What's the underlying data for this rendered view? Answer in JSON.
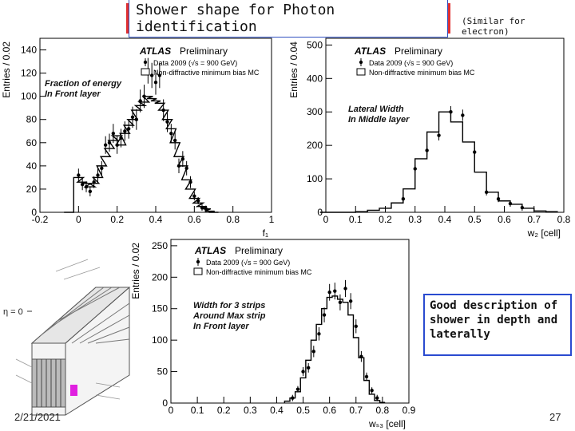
{
  "slide": {
    "title": "Shower shape for Photon identification",
    "note_right": "(Similar for electron)",
    "good_description": "Good description of shower in depth and laterally",
    "date": "2/21/2021",
    "page_number": "27",
    "colors": {
      "title_border": "#e03030",
      "note_border": "#2a4bd0",
      "annotation": "#111111"
    }
  },
  "chart_data": [
    {
      "type": "histogram",
      "panel": "top-left",
      "xlabel": "f₁",
      "ylabel": "Entries / 0.02",
      "xlim": [
        -0.2,
        1.0
      ],
      "ylim": [
        0,
        150
      ],
      "x_ticks": [
        "-0.2",
        "0",
        "0.2",
        "0.4",
        "0.6",
        "0.8",
        "1"
      ],
      "y_ticks": [
        "0",
        "20",
        "40",
        "60",
        "80",
        "100",
        "120",
        "140"
      ],
      "atlas_label": "ATLAS",
      "atlas_sub": "Preliminary",
      "legend": [
        "Data 2009 (√s = 900 GeV)",
        "Non-diffractive minimum bias MC"
      ],
      "annotation": [
        "Fraction of energy",
        "In Front layer"
      ],
      "x": [
        -0.05,
        0.0,
        0.02,
        0.04,
        0.06,
        0.08,
        0.1,
        0.12,
        0.14,
        0.16,
        0.18,
        0.2,
        0.22,
        0.24,
        0.26,
        0.28,
        0.3,
        0.32,
        0.34,
        0.36,
        0.38,
        0.4,
        0.42,
        0.44,
        0.46,
        0.48,
        0.5,
        0.52,
        0.54,
        0.56,
        0.58,
        0.6,
        0.62,
        0.64,
        0.66,
        0.68,
        0.7
      ],
      "mc": [
        0,
        30,
        26,
        25,
        22,
        25,
        30,
        40,
        48,
        55,
        62,
        66,
        58,
        68,
        75,
        80,
        88,
        92,
        95,
        100,
        98,
        96,
        94,
        88,
        80,
        72,
        60,
        48,
        40,
        28,
        20,
        12,
        8,
        5,
        3,
        1,
        0
      ],
      "data_points": [
        [
          0,
          32
        ],
        [
          0.02,
          24
        ],
        [
          0.04,
          22
        ],
        [
          0.06,
          18
        ],
        [
          0.08,
          26
        ],
        [
          0.1,
          32
        ],
        [
          0.12,
          38
        ],
        [
          0.14,
          58
        ],
        [
          0.16,
          60
        ],
        [
          0.18,
          68
        ],
        [
          0.2,
          58
        ],
        [
          0.22,
          64
        ],
        [
          0.24,
          70
        ],
        [
          0.26,
          72
        ],
        [
          0.28,
          82
        ],
        [
          0.3,
          80
        ],
        [
          0.32,
          96
        ],
        [
          0.34,
          100
        ],
        [
          0.36,
          122
        ],
        [
          0.38,
          118
        ],
        [
          0.4,
          112
        ],
        [
          0.42,
          118
        ],
        [
          0.44,
          88
        ],
        [
          0.46,
          78
        ],
        [
          0.48,
          68
        ],
        [
          0.5,
          62
        ],
        [
          0.52,
          40
        ],
        [
          0.54,
          46
        ],
        [
          0.56,
          38
        ],
        [
          0.58,
          26
        ],
        [
          0.6,
          14
        ],
        [
          0.62,
          10
        ],
        [
          0.64,
          4
        ],
        [
          0.66,
          3
        ]
      ]
    },
    {
      "type": "histogram",
      "panel": "top-right",
      "xlabel": "w₂ [cell]",
      "ylabel": "Entries / 0.04",
      "xlim": [
        0,
        0.8
      ],
      "ylim": [
        0,
        520
      ],
      "x_ticks": [
        "0",
        "0.1",
        "0.2",
        "0.3",
        "0.4",
        "0.5",
        "0.6",
        "0.7",
        "0.8"
      ],
      "y_ticks": [
        "0",
        "100",
        "200",
        "300",
        "400",
        "500"
      ],
      "atlas_label": "ATLAS",
      "atlas_sub": "Preliminary",
      "legend": [
        "Data 2009 (√s = 900 GeV)",
        "Non-diffractive minimum bias MC"
      ],
      "annotation": [
        "Lateral Width",
        "In Middle layer"
      ],
      "x": [
        0.0,
        0.04,
        0.08,
        0.12,
        0.16,
        0.2,
        0.24,
        0.28,
        0.32,
        0.36,
        0.4,
        0.44,
        0.48,
        0.52,
        0.56,
        0.6,
        0.64,
        0.68,
        0.72,
        0.76
      ],
      "mc": [
        0,
        0,
        0,
        2,
        6,
        12,
        28,
        70,
        160,
        240,
        300,
        270,
        210,
        120,
        60,
        34,
        24,
        12,
        4,
        2
      ],
      "data_points": [
        [
          0.26,
          40
        ],
        [
          0.3,
          130
        ],
        [
          0.34,
          185
        ],
        [
          0.38,
          230
        ],
        [
          0.42,
          300
        ],
        [
          0.46,
          290
        ],
        [
          0.5,
          180
        ],
        [
          0.54,
          60
        ],
        [
          0.58,
          40
        ],
        [
          0.62,
          26
        ],
        [
          0.66,
          14
        ]
      ]
    },
    {
      "type": "histogram",
      "panel": "bottom-middle",
      "xlabel": "wₛ₃ [cell]",
      "ylabel": "Entries / 0.02",
      "xlim": [
        0,
        0.9
      ],
      "ylim": [
        0,
        260
      ],
      "x_ticks": [
        "0",
        "0.1",
        "0.2",
        "0.3",
        "0.4",
        "0.5",
        "0.6",
        "0.7",
        "0.8",
        "0.9"
      ],
      "y_ticks": [
        "0",
        "50",
        "100",
        "150",
        "200",
        "250"
      ],
      "atlas_label": "ATLAS",
      "atlas_sub": "Preliminary",
      "legend": [
        "Data 2009 (√s = 900 GeV)",
        "Non-diffractive minimum bias MC"
      ],
      "annotation": [
        "Width for 3 strips",
        "Around Max strip",
        "In Front layer"
      ],
      "x": [
        0.44,
        0.46,
        0.48,
        0.5,
        0.52,
        0.54,
        0.56,
        0.58,
        0.6,
        0.62,
        0.64,
        0.66,
        0.68,
        0.7,
        0.72,
        0.74,
        0.76,
        0.78,
        0.8
      ],
      "mc": [
        3,
        8,
        18,
        40,
        68,
        100,
        125,
        150,
        168,
        170,
        165,
        160,
        140,
        104,
        72,
        36,
        14,
        4,
        1
      ],
      "data_points": [
        [
          0.46,
          8
        ],
        [
          0.48,
          22
        ],
        [
          0.5,
          50
        ],
        [
          0.52,
          56
        ],
        [
          0.54,
          82
        ],
        [
          0.56,
          110
        ],
        [
          0.58,
          140
        ],
        [
          0.6,
          176
        ],
        [
          0.62,
          178
        ],
        [
          0.64,
          160
        ],
        [
          0.66,
          182
        ],
        [
          0.68,
          162
        ],
        [
          0.7,
          122
        ],
        [
          0.72,
          74
        ],
        [
          0.74,
          42
        ],
        [
          0.76,
          20
        ],
        [
          0.78,
          8
        ]
      ]
    }
  ],
  "diagram": {
    "eta_label": "η = 0"
  }
}
